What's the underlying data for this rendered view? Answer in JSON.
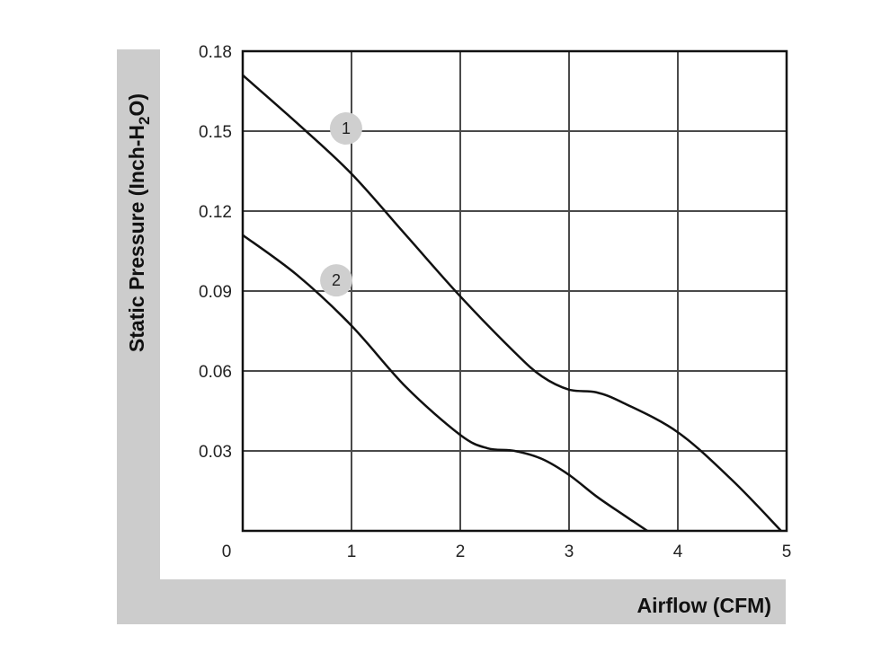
{
  "chart_data": {
    "type": "line",
    "xlabel": "Airflow (CFM)",
    "ylabel": "Static Pressure (Inch-H",
    "ylabel_sub": "2",
    "ylabel_tail": "O)",
    "xlim": [
      0,
      5
    ],
    "ylim": [
      0,
      0.18
    ],
    "grid": true,
    "x_ticks": [
      "0",
      "1",
      "2",
      "3",
      "4",
      "5"
    ],
    "y_ticks": [
      "0.03",
      "0.06",
      "0.09",
      "0.12",
      "0.15",
      "0.18"
    ],
    "series": [
      {
        "name": "1",
        "label_at": [
          0.95,
          0.151
        ],
        "x": [
          0,
          0.5,
          1.0,
          1.5,
          2.0,
          2.5,
          2.75,
          3.0,
          3.25,
          3.5,
          4.0,
          4.5,
          4.95
        ],
        "y": [
          0.171,
          0.153,
          0.134,
          0.111,
          0.088,
          0.067,
          0.058,
          0.053,
          0.052,
          0.048,
          0.037,
          0.019,
          0.0
        ]
      },
      {
        "name": "2",
        "label_at": [
          0.86,
          0.094
        ],
        "x": [
          0,
          0.5,
          1.0,
          1.5,
          2.0,
          2.25,
          2.5,
          2.75,
          3.0,
          3.25,
          3.5,
          3.72
        ],
        "y": [
          0.111,
          0.096,
          0.077,
          0.054,
          0.036,
          0.031,
          0.03,
          0.027,
          0.021,
          0.013,
          0.006,
          0.0
        ]
      }
    ]
  },
  "colors": {
    "frame_band": "#cccccc",
    "grid": "#4a4a4a",
    "line": "#111111",
    "marker_fill": "#cfcfcf"
  }
}
